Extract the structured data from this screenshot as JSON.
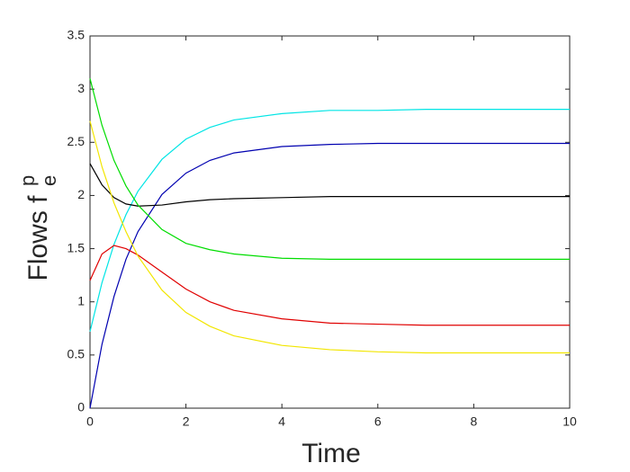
{
  "chart_data": {
    "type": "line",
    "x_label": "Time",
    "y_label": "Flows f",
    "y_label_superscript": "p",
    "y_label_subscript": "e",
    "x": [
      0,
      0.25,
      0.5,
      0.75,
      1,
      1.5,
      2,
      2.5,
      3,
      4,
      5,
      6,
      7,
      8,
      10
    ],
    "series": [
      {
        "color": "#00e5e5",
        "values": [
          0.72,
          1.18,
          1.54,
          1.82,
          2.04,
          2.34,
          2.53,
          2.64,
          2.71,
          2.77,
          2.8,
          2.8,
          2.81,
          2.81,
          2.81
        ]
      },
      {
        "color": "#0000b0",
        "values": [
          0,
          0.6,
          1.05,
          1.4,
          1.66,
          2.01,
          2.21,
          2.33,
          2.4,
          2.46,
          2.48,
          2.49,
          2.49,
          2.49,
          2.49
        ]
      },
      {
        "color": "#000000",
        "values": [
          2.3,
          2.1,
          1.98,
          1.92,
          1.9,
          1.91,
          1.94,
          1.96,
          1.97,
          1.98,
          1.99,
          1.99,
          1.99,
          1.99,
          1.99
        ]
      },
      {
        "color": "#00dd00",
        "values": [
          3.1,
          2.66,
          2.33,
          2.09,
          1.91,
          1.68,
          1.55,
          1.49,
          1.45,
          1.41,
          1.4,
          1.4,
          1.4,
          1.4,
          1.4
        ]
      },
      {
        "color": "#e00000",
        "values": [
          1.2,
          1.45,
          1.53,
          1.5,
          1.44,
          1.28,
          1.12,
          1.0,
          0.92,
          0.84,
          0.8,
          0.79,
          0.78,
          0.78,
          0.78
        ]
      },
      {
        "color": "#f2e600",
        "values": [
          2.7,
          2.27,
          1.93,
          1.66,
          1.43,
          1.11,
          0.9,
          0.77,
          0.68,
          0.59,
          0.55,
          0.53,
          0.52,
          0.52,
          0.52
        ]
      }
    ],
    "xlim": [
      0,
      10
    ],
    "ylim": [
      0,
      3.5
    ],
    "xticks": [
      0,
      2,
      4,
      6,
      8,
      10
    ],
    "yticks": [
      0,
      0.5,
      1,
      1.5,
      2,
      2.5,
      3,
      3.5
    ]
  }
}
